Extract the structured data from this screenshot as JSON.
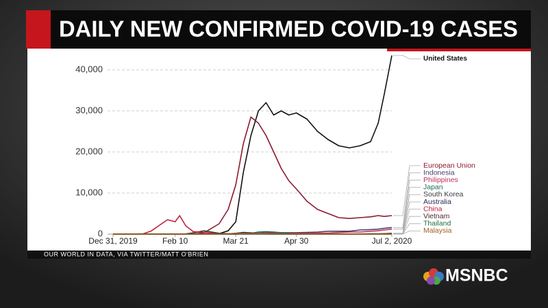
{
  "chart_data": {
    "type": "line",
    "title": "DAILY NEW CONFIRMED COVID-19 CASES",
    "source": "OUR WORLD IN DATA, VIA TWITTER/MATT O'BRIEN",
    "x": [
      "2019-12-31",
      "2020-01-10",
      "2020-01-20",
      "2020-01-25",
      "2020-02-01",
      "2020-02-05",
      "2020-02-10",
      "2020-02-13",
      "2020-02-17",
      "2020-02-22",
      "2020-02-29",
      "2020-03-10",
      "2020-03-16",
      "2020-03-21",
      "2020-03-26",
      "2020-03-31",
      "2020-04-05",
      "2020-04-10",
      "2020-04-15",
      "2020-04-20",
      "2020-04-25",
      "2020-04-30",
      "2020-05-07",
      "2020-05-14",
      "2020-05-21",
      "2020-05-28",
      "2020-06-04",
      "2020-06-11",
      "2020-06-18",
      "2020-06-23",
      "2020-06-27",
      "2020-07-02"
    ],
    "xlim": [
      "2019-12-31",
      "2020-07-02"
    ],
    "xticks": [
      {
        "value": "2019-12-31",
        "label": "Dec 31, 2019"
      },
      {
        "value": "2020-02-10",
        "label": "Feb 10"
      },
      {
        "value": "2020-03-21",
        "label": "Mar 21"
      },
      {
        "value": "2020-04-30",
        "label": "Apr 30"
      },
      {
        "value": "2020-07-02",
        "label": "Jul 2, 2020"
      }
    ],
    "ylim": [
      0,
      44000
    ],
    "yticks": [
      0,
      {
        "value": 10000,
        "label": "10,000"
      },
      {
        "value": 20000,
        "label": "20,000"
      },
      {
        "value": 30000,
        "label": "30,000"
      },
      {
        "value": 40000,
        "label": "40,000"
      }
    ],
    "grid": true,
    "series": [
      {
        "name": "United States",
        "color": "#111111",
        "values": [
          0,
          0,
          0,
          0,
          0,
          0,
          0,
          0,
          0,
          0,
          0,
          100,
          800,
          3000,
          15000,
          24000,
          30000,
          32000,
          29000,
          30000,
          29000,
          29500,
          28000,
          25000,
          23000,
          21500,
          21000,
          21500,
          22500,
          27000,
          34000,
          43500
        ]
      },
      {
        "name": "European Union",
        "color": "#8b1a2e",
        "values": [
          0,
          0,
          0,
          0,
          0,
          0,
          0,
          0,
          0,
          20,
          300,
          2500,
          6000,
          12000,
          22000,
          28500,
          27000,
          24000,
          20000,
          16000,
          13000,
          11000,
          8000,
          6000,
          5000,
          4000,
          3800,
          4000,
          4200,
          4500,
          4300,
          4500
        ]
      },
      {
        "name": "Indonesia",
        "color": "#4a3f6b",
        "values": [
          0,
          0,
          0,
          0,
          0,
          0,
          0,
          0,
          0,
          0,
          0,
          0,
          0,
          0,
          100,
          130,
          250,
          300,
          350,
          350,
          350,
          350,
          400,
          500,
          700,
          700,
          700,
          1000,
          1100,
          1200,
          1400,
          1600
        ]
      },
      {
        "name": "Philippines",
        "color": "#c0305a",
        "values": [
          0,
          0,
          0,
          0,
          0,
          0,
          0,
          0,
          0,
          0,
          0,
          0,
          0,
          50,
          80,
          300,
          200,
          200,
          250,
          200,
          250,
          250,
          200,
          250,
          250,
          400,
          500,
          500,
          700,
          800,
          1000,
          1200
        ]
      },
      {
        "name": "Japan",
        "color": "#1f6e5a",
        "values": [
          0,
          0,
          0,
          0,
          0,
          0,
          0,
          0,
          0,
          0,
          0,
          0,
          30,
          50,
          100,
          200,
          500,
          600,
          500,
          350,
          150,
          100,
          50,
          20,
          30,
          30,
          40,
          40,
          60,
          80,
          100,
          200
        ]
      },
      {
        "name": "South Korea",
        "color": "#3a3a3a",
        "values": [
          0,
          0,
          0,
          0,
          0,
          0,
          0,
          0,
          50,
          300,
          800,
          200,
          100,
          100,
          100,
          80,
          50,
          30,
          20,
          10,
          10,
          5,
          20,
          20,
          20,
          50,
          40,
          40,
          50,
          40,
          50,
          60
        ]
      },
      {
        "name": "Australia",
        "color": "#2a2a5a",
        "values": [
          0,
          0,
          0,
          0,
          0,
          0,
          0,
          0,
          0,
          0,
          0,
          0,
          50,
          200,
          400,
          300,
          100,
          50,
          30,
          20,
          15,
          10,
          10,
          10,
          10,
          10,
          10,
          15,
          20,
          40,
          60,
          70
        ]
      },
      {
        "name": "China",
        "color": "#c0203a",
        "values": [
          0,
          0,
          80,
          700,
          2500,
          3500,
          3000,
          4500,
          2000,
          600,
          400,
          30,
          20,
          40,
          80,
          50,
          50,
          40,
          20,
          15,
          10,
          5,
          5,
          10,
          10,
          20,
          20,
          20,
          15,
          20,
          10,
          5
        ]
      },
      {
        "name": "Vietnam",
        "color": "#4a2a2a",
        "values": [
          0,
          0,
          0,
          0,
          1,
          1,
          1,
          0,
          0,
          0,
          0,
          5,
          10,
          10,
          10,
          5,
          5,
          2,
          1,
          1,
          0,
          0,
          0,
          0,
          0,
          1,
          0,
          0,
          0,
          0,
          1,
          0
        ]
      },
      {
        "name": "Thailand",
        "color": "#1f6e3a",
        "values": [
          0,
          0,
          1,
          2,
          5,
          3,
          2,
          1,
          1,
          1,
          0,
          5,
          20,
          80,
          100,
          120,
          80,
          50,
          20,
          10,
          5,
          5,
          5,
          3,
          3,
          2,
          2,
          1,
          2,
          3,
          3,
          5
        ]
      },
      {
        "name": "Malaysia",
        "color": "#a06020",
        "values": [
          0,
          0,
          0,
          0,
          1,
          1,
          1,
          1,
          1,
          1,
          1,
          5,
          100,
          150,
          200,
          150,
          150,
          100,
          80,
          50,
          40,
          30,
          40,
          30,
          20,
          20,
          15,
          10,
          5,
          5,
          5,
          5
        ]
      }
    ]
  },
  "logo": "MSNBC"
}
